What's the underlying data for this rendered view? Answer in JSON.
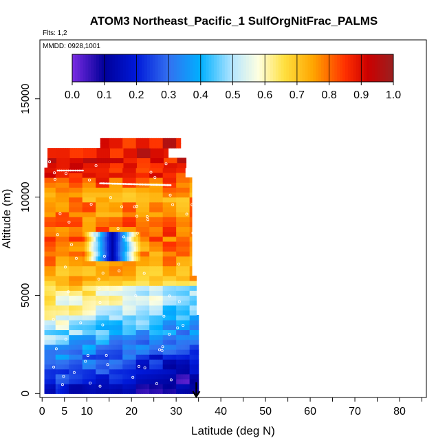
{
  "chart_data": {
    "type": "heatmap",
    "title": "ATOM3 Northeast_Pacific_1 SulfOrgNitFrac_PALMS",
    "subtitle": "Flts: 1,2",
    "annotation": "MMDD: 0928,1001",
    "xlabel": "Latitude (deg N)",
    "ylabel": "Altitude (m)",
    "xlim": [
      -0.5,
      86
    ],
    "ylim": [
      -200,
      18000
    ],
    "x_ticks": [
      0,
      5,
      10,
      20,
      30,
      40,
      50,
      60,
      70,
      80
    ],
    "x_tick_labels": [
      "0",
      "5",
      "10",
      "20",
      "30",
      "40",
      "50",
      "60",
      "70",
      "80"
    ],
    "x_minor_ticks": [
      0,
      5,
      10,
      15,
      20,
      25,
      30,
      35,
      40,
      45,
      50,
      55,
      60,
      65,
      70,
      75,
      80,
      85
    ],
    "y_ticks": [
      0,
      5000,
      10000,
      15000
    ],
    "y_tick_labels": [
      "0",
      "5000",
      "10000",
      "15000"
    ],
    "colorbar": {
      "ticks": [
        0.0,
        0.1,
        0.2,
        0.3,
        0.4,
        0.5,
        0.6,
        0.7,
        0.8,
        0.9,
        1.0
      ],
      "tick_labels": [
        "0.0",
        "0.1",
        "0.2",
        "0.3",
        "0.4",
        "0.5",
        "0.6",
        "0.7",
        "0.8",
        "0.9",
        "1.0"
      ],
      "colors": [
        "#7a2be2",
        "#000099",
        "#0019d9",
        "#3370f0",
        "#00b0ff",
        "#b6e6ff",
        "#ffffe0",
        "#ffe040",
        "#ffa500",
        "#ff3000",
        "#cc0000",
        "#992020"
      ],
      "color_stops": [
        0.0,
        0.1,
        0.2,
        0.3,
        0.4,
        0.5,
        0.58,
        0.66,
        0.75,
        0.85,
        0.92,
        1.0
      ]
    },
    "marker_latitude": 34.5,
    "grid": false,
    "curtain_x_range": [
      0.5,
      35
    ],
    "curtain_altitude_range": [
      0,
      13000
    ],
    "vertical_profile": [
      {
        "alt": 0,
        "value": 0.22
      },
      {
        "alt": 1000,
        "value": 0.3
      },
      {
        "alt": 2000,
        "value": 0.38
      },
      {
        "alt": 3000,
        "value": 0.5
      },
      {
        "alt": 4000,
        "value": 0.6
      },
      {
        "alt": 5000,
        "value": 0.66
      },
      {
        "alt": 6000,
        "value": 0.74
      },
      {
        "alt": 7000,
        "value": 0.76
      },
      {
        "alt": 8000,
        "value": 0.82
      },
      {
        "alt": 9000,
        "value": 0.78
      },
      {
        "alt": 10000,
        "value": 0.75
      },
      {
        "alt": 11000,
        "value": 0.86
      },
      {
        "alt": 12000,
        "value": 0.9
      }
    ],
    "features": [
      {
        "name": "low-fraction-pocket",
        "lat_range": [
          9,
          22
        ],
        "alt_range": [
          6600,
          8000
        ],
        "value": 0.12
      },
      {
        "name": "low-altitude-low-fraction",
        "lat_range": [
          1,
          15
        ],
        "alt_range": [
          0,
          400
        ],
        "value": 0.12
      }
    ]
  }
}
